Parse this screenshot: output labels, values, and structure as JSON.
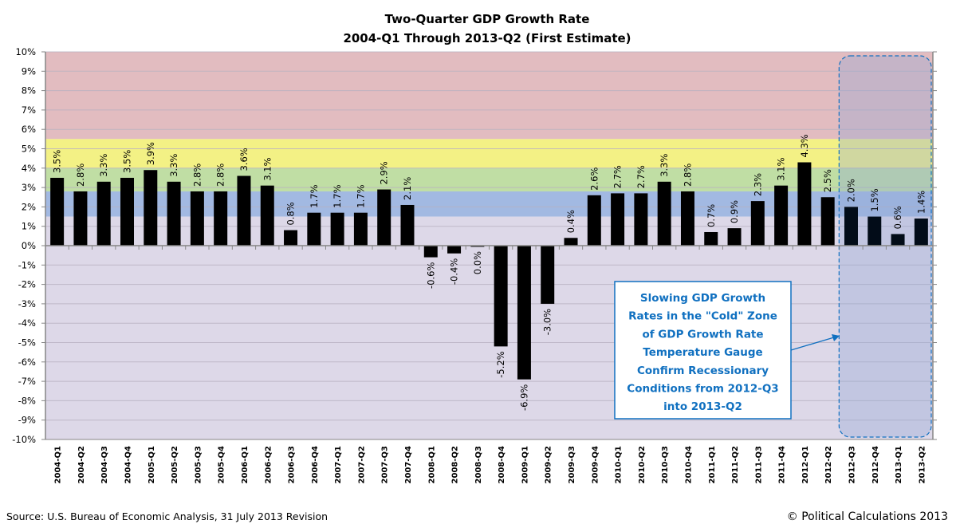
{
  "chart_data": {
    "type": "bar",
    "title": "Two-Quarter  GDP Growth Rate",
    "subtitle": "2004-Q1 Through  2013-Q2 (First Estimate)",
    "xlabel": "",
    "ylabel": "",
    "ylim": [
      -10,
      10
    ],
    "ytick_step": 1,
    "ytick_labels": [
      "10%",
      "9%",
      "8%",
      "7%",
      "6%",
      "5%",
      "4%",
      "3%",
      "2%",
      "1%",
      "0%",
      "-1%",
      "-2%",
      "-3%",
      "-4%",
      "-5%",
      "-6%",
      "-7%",
      "-8%",
      "-9%",
      "-10%"
    ],
    "grid": true,
    "legend": "none",
    "categories": [
      "2004-Q1",
      "2004-Q2",
      "2004-Q3",
      "2004-Q4",
      "2005-Q1",
      "2005-Q2",
      "2005-Q3",
      "2005-Q4",
      "2006-Q1",
      "2006-Q2",
      "2006-Q3",
      "2006-Q4",
      "2007-Q1",
      "2007-Q2",
      "2007-Q3",
      "2007-Q4",
      "2008-Q1",
      "2008-Q2",
      "2008-Q3",
      "2008-Q4",
      "2009-Q1",
      "2009-Q2",
      "2009-Q3",
      "2009-Q4",
      "2010-Q1",
      "2010-Q2",
      "2010-Q3",
      "2010-Q4",
      "2011-Q1",
      "2011-Q2",
      "2011-Q3",
      "2011-Q4",
      "2012-Q1",
      "2012-Q2",
      "2012-Q3",
      "2012-Q4",
      "2013-Q1",
      "2013-Q2"
    ],
    "values": [
      3.5,
      2.8,
      3.3,
      3.5,
      3.9,
      3.3,
      2.8,
      2.8,
      3.6,
      3.1,
      0.8,
      1.7,
      1.7,
      1.7,
      2.9,
      2.1,
      -0.6,
      -0.4,
      0.0,
      -5.2,
      -6.9,
      -3.0,
      0.4,
      2.6,
      2.7,
      2.7,
      3.3,
      2.8,
      0.7,
      0.9,
      2.3,
      3.1,
      4.3,
      2.5,
      2.0,
      1.5,
      0.6,
      1.4
    ],
    "data_labels": [
      "3.5%",
      "2.8%",
      "3.3%",
      "3.5%",
      "3.9%",
      "3.3%",
      "2.8%",
      "2.8%",
      "3.6%",
      "3.1%",
      "0.8%",
      "1.7%",
      "1.7%",
      "1.7%",
      "2.9%",
      "2.1%",
      "-0.6%",
      "-0.4%",
      "0.0%",
      "-5.2%",
      "-6.9%",
      "-3.0%",
      "0.4%",
      "2.6%",
      "2.7%",
      "2.7%",
      "3.3%",
      "2.8%",
      "0.7%",
      "0.9%",
      "2.3%",
      "3.1%",
      "4.3%",
      "2.5%",
      "2.0%",
      "1.5%",
      "0.6%",
      "1.4%"
    ],
    "bar_color": "#000000",
    "zones": [
      {
        "name": "hot",
        "from": 5.5,
        "to": 10,
        "color": "#e2bcc0"
      },
      {
        "name": "warm",
        "from": 4.0,
        "to": 5.5,
        "color": "#f3f185"
      },
      {
        "name": "good",
        "from": 2.8,
        "to": 4.0,
        "color": "#c0dea4"
      },
      {
        "name": "cool",
        "from": 1.5,
        "to": 2.8,
        "color": "#a2b9e2"
      },
      {
        "name": "cold",
        "from": -10,
        "to": 1.5,
        "color": "#ddd8e8"
      }
    ],
    "highlight": {
      "from_category": "2012-Q3",
      "to_category": "2013-Q2",
      "color": "#1070c0",
      "fill": "#8fa6d4"
    },
    "annotation": {
      "lines": [
        "Slowing GDP Growth",
        "Rates in the \"Cold\" Zone",
        "of GDP Growth Rate",
        "Temperature Gauge",
        "Confirm Recessionary",
        "Conditions from 2012-Q3",
        "into 2013-Q2"
      ],
      "color": "#1070c0"
    }
  },
  "footer": {
    "source": "Source: U.S. Bureau of Economic Analysis, 31 July 2013 Revision",
    "copyright": "© Political Calculations 2013"
  }
}
